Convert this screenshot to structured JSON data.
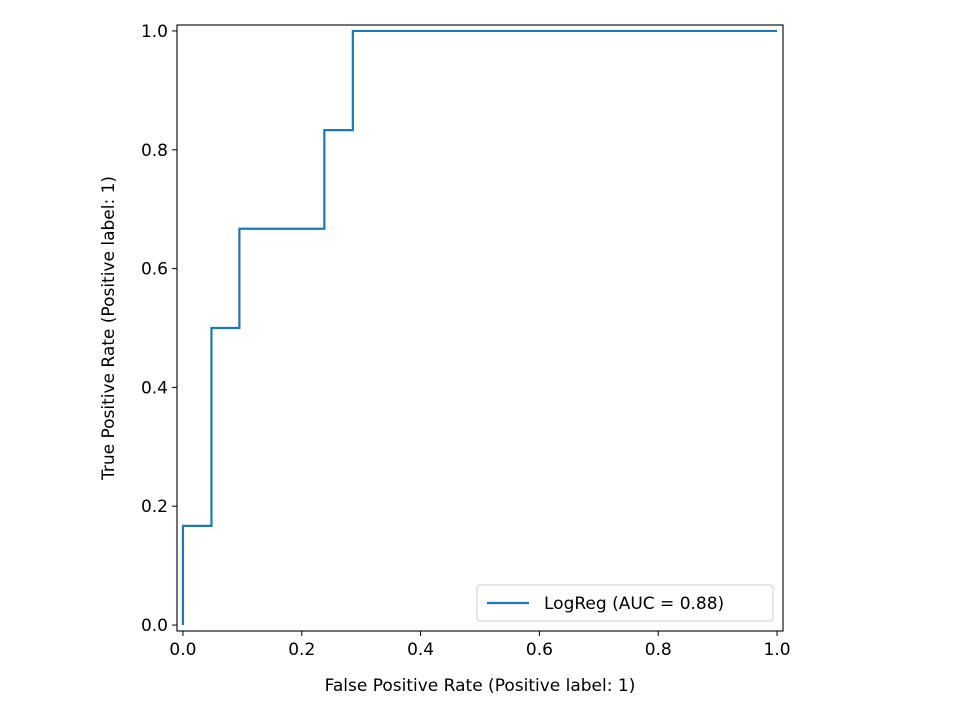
{
  "chart_data": {
    "type": "line",
    "title": "",
    "xlabel": "False Positive Rate (Positive label: 1)",
    "ylabel": "True Positive Rate (Positive label: 1)",
    "xlim": [
      -0.01,
      1.01
    ],
    "ylim": [
      -0.01,
      1.01
    ],
    "grid": false,
    "legend_position": "bottom-right",
    "xticks": [
      0.0,
      0.2,
      0.4,
      0.6,
      0.8,
      1.0
    ],
    "xtick_labels": [
      "0.0",
      "0.2",
      "0.4",
      "0.6",
      "0.8",
      "1.0"
    ],
    "yticks": [
      0.0,
      0.2,
      0.4,
      0.6,
      0.8,
      1.0
    ],
    "ytick_labels": [
      "0.0",
      "0.2",
      "0.4",
      "0.6",
      "0.8",
      "1.0"
    ],
    "series": [
      {
        "name": "LogReg (AUC = 0.88)",
        "color": "#1f77b4",
        "drawstyle": "step",
        "x": [
          0.0,
          0.0,
          0.048,
          0.048,
          0.095,
          0.095,
          0.238,
          0.238,
          0.286,
          0.286,
          1.0
        ],
        "y": [
          0.0,
          0.167,
          0.167,
          0.5,
          0.5,
          0.667,
          0.667,
          0.833,
          0.833,
          1.0,
          1.0
        ]
      }
    ]
  }
}
